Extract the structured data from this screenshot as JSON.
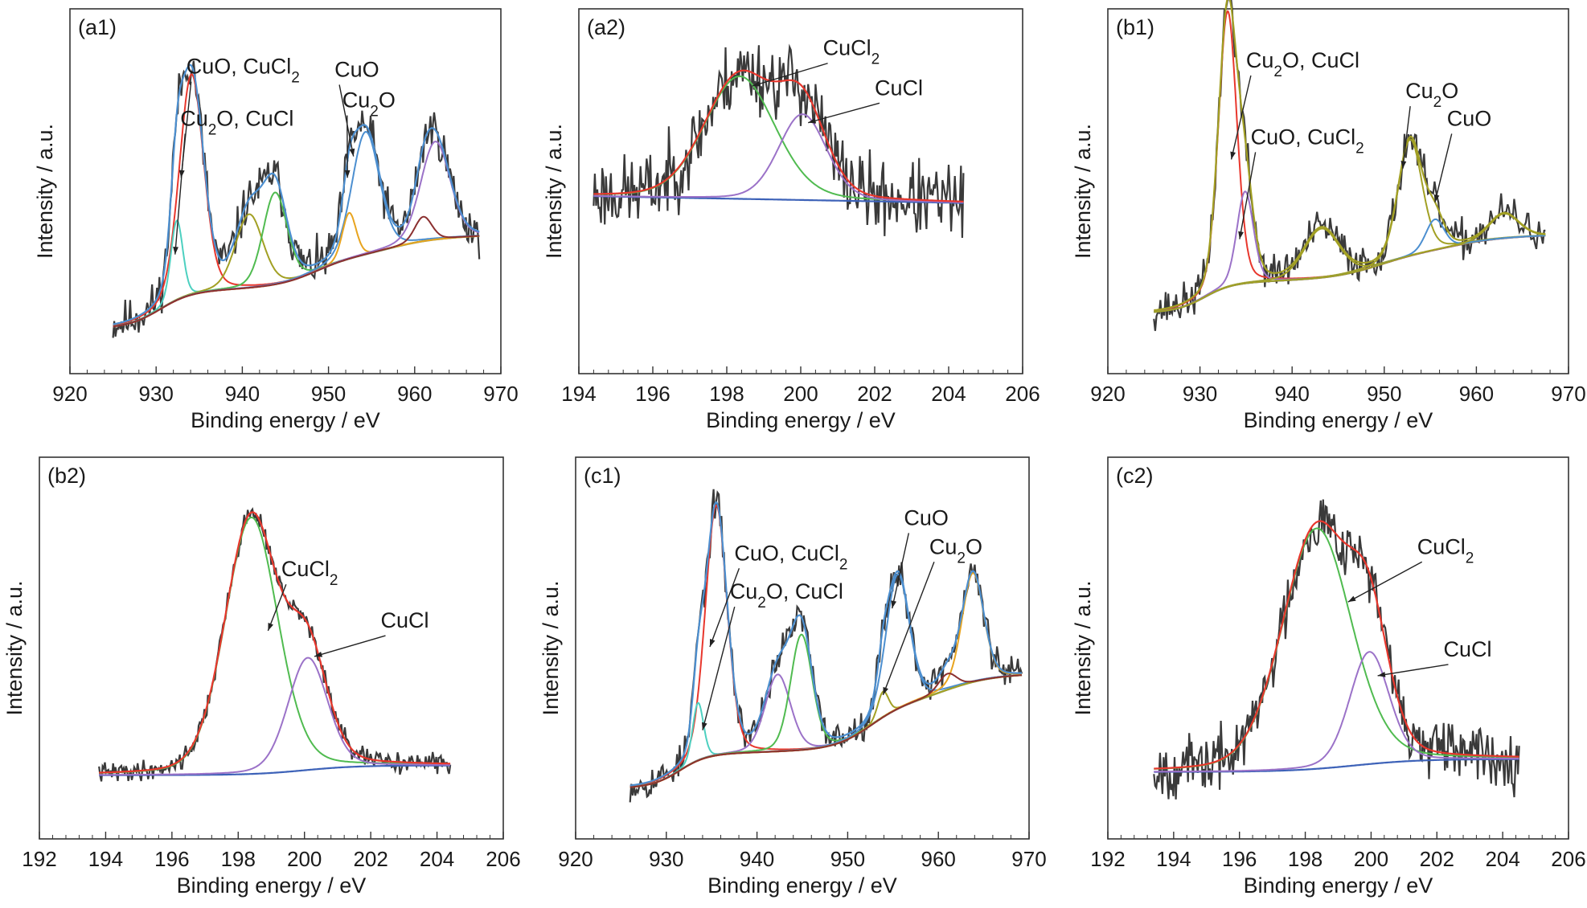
{
  "colors": {
    "data": "#3a3a3a",
    "envelope": "#e8372d",
    "envelope_cu": "#4c8fd0",
    "envelope_b1": "#a2a024",
    "background": "#e8691f",
    "background_b1": "#7b3a3a",
    "background_cl": "#3d62b8",
    "cuo": "#4c8fd0",
    "cu2o": "#4dd0c0",
    "sat1": "#a2a024",
    "sat2": "#9b72c8",
    "sat3": "#8b3030",
    "cucl2": "#50bb50",
    "cucl": "#9b72c8"
  },
  "chart_data": [
    {
      "type": "line",
      "panel": "(a1)",
      "xlabel": "Binding energy / eV",
      "ylabel": "Intensity / a.u.",
      "xlim": [
        920,
        970
      ],
      "xticks": [
        920,
        930,
        940,
        950,
        960,
        970
      ],
      "x_range": [
        925,
        967.5
      ],
      "noise": 0.035,
      "seed": 11,
      "background": {
        "name": "",
        "color": "#e8691f",
        "steps": [
          [
            930.5,
            0.11,
            1.8
          ],
          [
            948.5,
            0.09,
            2.2
          ],
          [
            957.5,
            0.05,
            2.5
          ]
        ],
        "base": 0.03,
        "slope": 0.0012
      },
      "components": [
        {
          "name": "CuO, CuCl2",
          "center": 934.1,
          "amp": 0.72,
          "width": 1.4,
          "color": "#e8372d"
        },
        {
          "name": "Cu2O, CuCl",
          "center": 932.4,
          "amp": 0.26,
          "width": 0.7,
          "color": "#4dd0c0"
        },
        {
          "name": "",
          "center": 940.8,
          "amp": 0.24,
          "width": 1.6,
          "color": "#a2a024"
        },
        {
          "name": "",
          "center": 943.8,
          "amp": 0.3,
          "width": 1.4,
          "color": "#50bb50"
        },
        {
          "name": "CuO",
          "center": 954.3,
          "amp": 0.4,
          "width": 1.6,
          "color": "#4c8fd0"
        },
        {
          "name": "Cu2O",
          "center": 952.4,
          "amp": 0.15,
          "width": 0.8,
          "color": "#e8a41f"
        },
        {
          "name": "",
          "center": 962.4,
          "amp": 0.32,
          "width": 1.7,
          "color": "#9b72c8"
        },
        {
          "name": "",
          "center": 961.0,
          "amp": 0.08,
          "width": 1.0,
          "color": "#8b3030"
        }
      ],
      "envelope_color": "#4c8fd0",
      "annotations": [
        {
          "label": "CuO, CuCl",
          "sub": "2",
          "tail": "",
          "text_x": 933.5,
          "text_y": 0.86,
          "point_x": 932.9,
          "point_y": 0.52
        },
        {
          "label": "Cu",
          "sub": "2",
          "tail": "O, CuCl",
          "text_x": 932.8,
          "text_y": 0.69,
          "point_x": 932.2,
          "point_y": 0.27
        },
        {
          "label": "CuO",
          "sub": "",
          "tail": "",
          "text_x": 950.7,
          "text_y": 0.85,
          "point_x": 952.9,
          "point_y": 0.59
        },
        {
          "label": "Cu",
          "sub": "2",
          "tail": "O",
          "text_x": 951.6,
          "text_y": 0.75,
          "point_x": 952.2,
          "point_y": 0.52
        }
      ]
    },
    {
      "type": "line",
      "panel": "(a2)",
      "xlabel": "Binding energy / eV",
      "ylabel": "Intensity / a.u.",
      "xlim": [
        194,
        206
      ],
      "xticks": [
        194,
        196,
        198,
        200,
        202,
        204,
        206
      ],
      "x_range": [
        194.4,
        204.4
      ],
      "noise": 0.06,
      "seed": 23,
      "background": {
        "name": "",
        "color": "#3d62b8",
        "steps": [],
        "base": 0.46,
        "slope": -0.0022
      },
      "components": [
        {
          "name": "CuCl2",
          "center": 198.35,
          "amp": 0.4,
          "width": 0.95,
          "color": "#50bb50"
        },
        {
          "name": "CuCl",
          "center": 200.05,
          "amp": 0.28,
          "width": 0.65,
          "color": "#9b72c8"
        }
      ],
      "envelope_color": "#e8372d",
      "annotations": [
        {
          "label": "CuCl",
          "sub": "2",
          "tail": "",
          "text_x": 200.6,
          "text_y": 0.92,
          "point_x": 198.7,
          "point_y": 0.82
        },
        {
          "label": "CuCl",
          "sub": "",
          "tail": "",
          "text_x": 202.0,
          "text_y": 0.79,
          "point_x": 200.2,
          "point_y": 0.7
        }
      ]
    },
    {
      "type": "line",
      "panel": "(b1)",
      "xlabel": "Binding energy / eV",
      "ylabel": "Intensity / a.u.",
      "xlim": [
        920,
        970
      ],
      "xticks": [
        920,
        930,
        940,
        950,
        960,
        970
      ],
      "x_range": [
        925,
        967.5
      ],
      "noise": 0.03,
      "seed": 37,
      "background": {
        "name": "",
        "color": "#7b3a3a",
        "steps": [
          [
            930.5,
            0.09,
            1.5
          ],
          [
            949.5,
            0.08,
            2.5
          ],
          [
            958.0,
            0.04,
            2.5
          ]
        ],
        "base": 0.08,
        "slope": 0.001
      },
      "components": [
        {
          "name": "Cu2O, CuCl",
          "center": 933.0,
          "amp": 0.9,
          "width": 1.0,
          "color": "#e8372d"
        },
        {
          "name": "CuO, CuCl2",
          "center": 934.9,
          "amp": 0.3,
          "width": 0.9,
          "color": "#9b72c8"
        },
        {
          "name": "",
          "center": 943.2,
          "amp": 0.16,
          "width": 1.9,
          "color": "#a2a024"
        },
        {
          "name": "Cu2O",
          "center": 952.8,
          "amp": 0.38,
          "width": 1.3,
          "color": "#a2a024"
        },
        {
          "name": "CuO",
          "center": 955.5,
          "amp": 0.1,
          "width": 1.0,
          "color": "#4c8fd0"
        },
        {
          "name": "",
          "center": 963.0,
          "amp": 0.08,
          "width": 1.6,
          "color": "#a2a024"
        }
      ],
      "envelope_color": "#a2a024",
      "annotations": [
        {
          "label": "Cu",
          "sub": "2",
          "tail": "O, CuCl",
          "text_x": 935.0,
          "text_y": 0.88,
          "point_x": 933.4,
          "point_y": 0.58
        },
        {
          "label": "CuO, CuCl",
          "sub": "2",
          "tail": "",
          "text_x": 935.5,
          "text_y": 0.63,
          "point_x": 934.3,
          "point_y": 0.32
        },
        {
          "label": "Cu",
          "sub": "2",
          "tail": "O",
          "text_x": 952.3,
          "text_y": 0.78,
          "point_x": 952.0,
          "point_y": 0.55
        },
        {
          "label": "CuO",
          "sub": "",
          "tail": "",
          "text_x": 956.8,
          "text_y": 0.69,
          "point_x": 955.5,
          "point_y": 0.44
        }
      ]
    },
    {
      "type": "line",
      "panel": "(b2)",
      "xlabel": "Binding energy / eV",
      "ylabel": "Intensity / a.u.",
      "xlim": [
        192,
        206
      ],
      "xticks": [
        192,
        194,
        196,
        198,
        200,
        202,
        204,
        206
      ],
      "x_range": [
        193.8,
        204.4
      ],
      "noise": 0.015,
      "seed": 41,
      "background": {
        "name": "",
        "color": "#3d62b8",
        "steps": [
          [
            200.0,
            0.03,
            0.8
          ]
        ],
        "base": 0.08,
        "slope": 0.0
      },
      "components": [
        {
          "name": "CuCl2",
          "center": 198.4,
          "amp": 0.8,
          "width": 0.8,
          "color": "#50bb50"
        },
        {
          "name": "CuCl",
          "center": 200.1,
          "amp": 0.35,
          "width": 0.6,
          "color": "#9b72c8"
        }
      ],
      "envelope_color": "#e8372d",
      "annotations": [
        {
          "label": "CuCl",
          "sub": "2",
          "tail": "",
          "text_x": 199.3,
          "text_y": 0.7,
          "point_x": 198.9,
          "point_y": 0.53
        },
        {
          "label": "CuCl",
          "sub": "",
          "tail": "",
          "text_x": 202.3,
          "text_y": 0.54,
          "point_x": 200.3,
          "point_y": 0.45
        }
      ]
    },
    {
      "type": "line",
      "panel": "(c1)",
      "xlabel": "Binding energy / eV",
      "ylabel": "Intensity / a.u.",
      "xlim": [
        920,
        970
      ],
      "xticks": [
        920,
        930,
        940,
        950,
        960,
        970
      ],
      "x_range": [
        926,
        969.2
      ],
      "noise": 0.025,
      "seed": 53,
      "background": {
        "name": "",
        "color": "#e8691f",
        "steps": [
          [
            931.5,
            0.1,
            1.5
          ],
          [
            952.5,
            0.14,
            2.0
          ],
          [
            961.0,
            0.08,
            2.5
          ]
        ],
        "base": 0.04,
        "slope": 0.0008
      },
      "components": [
        {
          "name": "CuO, CuCl2",
          "center": 935.5,
          "amp": 0.78,
          "width": 1.2,
          "color": "#e8372d"
        },
        {
          "name": "Cu2O, CuCl",
          "center": 933.5,
          "amp": 0.18,
          "width": 0.6,
          "color": "#4dd0c0"
        },
        {
          "name": "",
          "center": 942.3,
          "amp": 0.24,
          "width": 1.4,
          "color": "#9b72c8"
        },
        {
          "name": "",
          "center": 944.9,
          "amp": 0.36,
          "width": 1.2,
          "color": "#50bb50"
        },
        {
          "name": "CuO",
          "center": 955.5,
          "amp": 0.42,
          "width": 1.3,
          "color": "#4c8fd0"
        },
        {
          "name": "Cu2O",
          "center": 953.9,
          "amp": 0.08,
          "width": 0.6,
          "color": "#a2a024"
        },
        {
          "name": "",
          "center": 963.8,
          "amp": 0.34,
          "width": 1.2,
          "color": "#e8a41f"
        },
        {
          "name": "",
          "center": 961.0,
          "amp": 0.05,
          "width": 1.0,
          "color": "#8b3030"
        }
      ],
      "envelope_color": "#4c8fd0",
      "annotations": [
        {
          "label": "CuO, CuCl",
          "sub": "2",
          "tail": "",
          "text_x": 937.5,
          "text_y": 0.75,
          "point_x": 934.8,
          "point_y": 0.48
        },
        {
          "label": "Cu",
          "sub": "2",
          "tail": "O, CuCl",
          "text_x": 937.0,
          "text_y": 0.63,
          "point_x": 934.0,
          "point_y": 0.22
        },
        {
          "label": "CuO",
          "sub": "",
          "tail": "",
          "text_x": 956.2,
          "text_y": 0.86,
          "point_x": 954.9,
          "point_y": 0.6
        },
        {
          "label": "Cu",
          "sub": "2",
          "tail": "O",
          "text_x": 959.0,
          "text_y": 0.77,
          "point_x": 953.9,
          "point_y": 0.33
        }
      ]
    },
    {
      "type": "line",
      "panel": "(c2)",
      "xlabel": "Binding energy / eV",
      "ylabel": "Intensity / a.u.",
      "xlim": [
        192,
        206
      ],
      "xticks": [
        192,
        194,
        196,
        198,
        200,
        202,
        204,
        206
      ],
      "x_range": [
        193.4,
        204.5
      ],
      "noise": 0.045,
      "seed": 67,
      "background": {
        "name": "",
        "color": "#3d62b8",
        "steps": [
          [
            199.5,
            0.04,
            1.0
          ]
        ],
        "base": 0.09,
        "slope": 0.0
      },
      "components": [
        {
          "name": "CuCl2",
          "center": 198.35,
          "amp": 0.75,
          "width": 1.05,
          "color": "#50bb50"
        },
        {
          "name": "CuCl",
          "center": 199.95,
          "amp": 0.35,
          "width": 0.6,
          "color": "#9b72c8"
        }
      ],
      "envelope_color": "#e8372d",
      "annotations": [
        {
          "label": "CuCl",
          "sub": "2",
          "tail": "",
          "text_x": 201.4,
          "text_y": 0.77,
          "point_x": 199.3,
          "point_y": 0.62
        },
        {
          "label": "CuCl",
          "sub": "",
          "tail": "",
          "text_x": 202.2,
          "text_y": 0.45,
          "point_x": 200.2,
          "point_y": 0.39
        }
      ]
    }
  ]
}
